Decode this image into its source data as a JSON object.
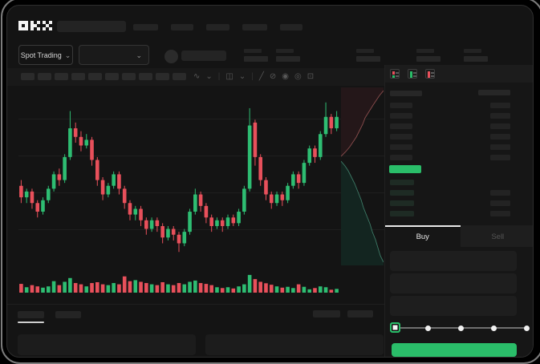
{
  "colors": {
    "accent_green": "#2abd69",
    "candle_green": "#2ebd72",
    "candle_red": "#e8505b",
    "panel_bg": "#161616"
  },
  "header": {
    "logo_alt": "OKX",
    "market_selector_label": "Spot Trading",
    "nav_placeholder_widths": [
      31,
      28,
      29,
      31,
      28
    ],
    "stat_placeholder_x": [
      295,
      335,
      435,
      510,
      569
    ]
  },
  "toolbar": {
    "drawing_tool_placeholder_count": 10,
    "icons": [
      "indicator-zigzag-icon",
      "chevron-down-icon",
      "divider",
      "candle-style-icon",
      "chevron-down-icon",
      "divider",
      "line-tool-icon",
      "eraser-icon",
      "camera-icon",
      "settings-icon",
      "fullscreen-icon"
    ]
  },
  "order_book": {
    "view_mode_icons": [
      "book-all-icon",
      "book-buy-icon",
      "book-sell-icon"
    ],
    "ask_row_count": 6,
    "bid_row_count": 4,
    "last_price_highlight_color": "#2abd69"
  },
  "trade_panel": {
    "tabs": [
      {
        "label": "Buy",
        "active": true
      },
      {
        "label": "Sell",
        "active": false
      }
    ],
    "field_placeholder_count": 3,
    "amount_slider": {
      "stop_count": 5,
      "selected_index": 0
    },
    "submit_button_color": "#2abd69"
  },
  "chart_data": {
    "type": "candlestick",
    "ohlc_format": [
      "open",
      "high",
      "low",
      "close"
    ],
    "price_scale": [
      30,
      88
    ],
    "gridlines": "faint-horizontal",
    "candles": [
      [
        56,
        58,
        50,
        52
      ],
      [
        52,
        55,
        50,
        54
      ],
      [
        54,
        55,
        48,
        50
      ],
      [
        50,
        51,
        45,
        47
      ],
      [
        47,
        52,
        46,
        51
      ],
      [
        51,
        56,
        50,
        55
      ],
      [
        55,
        61,
        54,
        60
      ],
      [
        60,
        62,
        56,
        58
      ],
      [
        58,
        67,
        57,
        66
      ],
      [
        66,
        82,
        65,
        76
      ],
      [
        76,
        78,
        71,
        73
      ],
      [
        73,
        75,
        68,
        70
      ],
      [
        70,
        74,
        69,
        72
      ],
      [
        72,
        73,
        63,
        65
      ],
      [
        65,
        66,
        56,
        58
      ],
      [
        58,
        59,
        51,
        53
      ],
      [
        53,
        57,
        52,
        56
      ],
      [
        56,
        61,
        55,
        60
      ],
      [
        60,
        61,
        53,
        55
      ],
      [
        55,
        56,
        48,
        50
      ],
      [
        50,
        51,
        44,
        46
      ],
      [
        46,
        49,
        44,
        48
      ],
      [
        48,
        49,
        42,
        44
      ],
      [
        44,
        45,
        39,
        41
      ],
      [
        41,
        45,
        40,
        44
      ],
      [
        44,
        45,
        40,
        42
      ],
      [
        42,
        43,
        36,
        38
      ],
      [
        38,
        42,
        37,
        41
      ],
      [
        41,
        42,
        37,
        39
      ],
      [
        39,
        40,
        33,
        36
      ],
      [
        36,
        41,
        35,
        40
      ],
      [
        40,
        48,
        39,
        47
      ],
      [
        47,
        55,
        46,
        53
      ],
      [
        53,
        54,
        47,
        49
      ],
      [
        49,
        50,
        43,
        45
      ],
      [
        45,
        46,
        40,
        42
      ],
      [
        42,
        45,
        41,
        44
      ],
      [
        44,
        45,
        40,
        42
      ],
      [
        42,
        46,
        41,
        45
      ],
      [
        45,
        46,
        42,
        43
      ],
      [
        43,
        48,
        42,
        47
      ],
      [
        47,
        56,
        46,
        55
      ],
      [
        55,
        83,
        54,
        77
      ],
      [
        78,
        79,
        63,
        66
      ],
      [
        66,
        67,
        56,
        58
      ],
      [
        58,
        59,
        51,
        53
      ],
      [
        53,
        54,
        48,
        50
      ],
      [
        50,
        54,
        49,
        53
      ],
      [
        53,
        54,
        49,
        51
      ],
      [
        51,
        57,
        50,
        56
      ],
      [
        56,
        61,
        55,
        60
      ],
      [
        60,
        61,
        55,
        57
      ],
      [
        57,
        65,
        56,
        64
      ],
      [
        64,
        70,
        63,
        69
      ],
      [
        69,
        70,
        64,
        66
      ],
      [
        66,
        75,
        65,
        74
      ],
      [
        74,
        85,
        73,
        80
      ],
      [
        80,
        81,
        74,
        76
      ],
      [
        76,
        82,
        75,
        80
      ]
    ],
    "volume": [
      42,
      26,
      36,
      30,
      24,
      30,
      55,
      36,
      52,
      70,
      46,
      40,
      30,
      46,
      50,
      40,
      36,
      46,
      40,
      78,
      55,
      60,
      52,
      46,
      40,
      36,
      50,
      40,
      36,
      46,
      40,
      52,
      58,
      46,
      42,
      36,
      26,
      22,
      26,
      20,
      30,
      40,
      85,
      65,
      52,
      45,
      38,
      30,
      24,
      28,
      22,
      40,
      28,
      16,
      22,
      30,
      26,
      14,
      18
    ],
    "depth_overlay": {
      "asks_area": "#241719",
      "asks_line": "#8a4d4d",
      "bids_area": "#132520",
      "bids_line": "#3d7a66"
    }
  }
}
